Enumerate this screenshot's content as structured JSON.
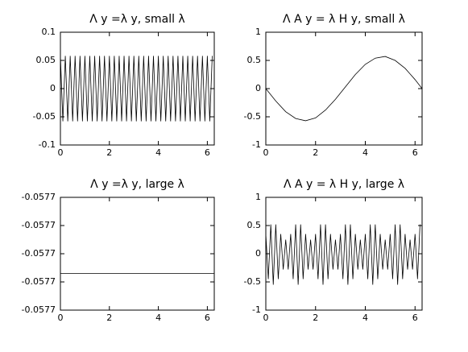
{
  "chart_data": [
    {
      "type": "line",
      "title": "Λ y =λ y, small λ",
      "color": "#000000",
      "x": [
        0,
        0.1,
        0.2,
        0.3,
        0.4,
        0.5,
        0.6,
        0.7,
        0.8,
        0.9,
        1,
        1.1,
        1.2,
        1.3,
        1.4,
        1.5,
        1.6,
        1.7,
        1.8,
        1.9,
        2,
        2.1,
        2.2,
        2.3,
        2.4,
        2.5,
        2.6,
        2.7,
        2.8,
        2.9,
        3,
        3.1,
        3.2,
        3.3,
        3.4,
        3.5,
        3.6,
        3.7,
        3.8,
        3.9,
        4,
        4.1,
        4.2,
        4.3,
        4.4,
        4.5,
        4.6,
        4.7,
        4.8,
        4.9,
        5,
        5.1,
        5.2,
        5.3,
        5.4,
        5.5,
        5.6,
        5.7,
        5.8,
        5.9,
        6,
        6.1,
        6.2
      ],
      "values": [
        0.058,
        -0.058,
        0.058,
        -0.058,
        0.058,
        -0.058,
        0.058,
        -0.058,
        0.058,
        -0.058,
        0.058,
        -0.058,
        0.058,
        -0.058,
        0.058,
        -0.058,
        0.058,
        -0.058,
        0.058,
        -0.058,
        0.058,
        -0.058,
        0.058,
        -0.058,
        0.058,
        -0.058,
        0.058,
        -0.058,
        0.058,
        -0.058,
        0.058,
        -0.058,
        0.058,
        -0.058,
        0.058,
        -0.058,
        0.058,
        -0.058,
        0.058,
        -0.058,
        0.058,
        -0.058,
        0.058,
        -0.058,
        0.058,
        -0.058,
        0.058,
        -0.058,
        0.058,
        -0.058,
        0.058,
        -0.058,
        0.058,
        -0.058,
        0.058,
        -0.058,
        0.058,
        -0.058,
        0.058,
        -0.058,
        0.058,
        -0.058,
        0.058
      ],
      "xlim": [
        0,
        6.2832
      ],
      "xticks": [
        0,
        2,
        4,
        6
      ],
      "ylim": [
        -0.1,
        0.1
      ],
      "yticks": [
        -0.1,
        -0.05,
        0,
        0.05,
        0.1
      ]
    },
    {
      "type": "line",
      "title": "Λ A y = λ H y, small λ",
      "color": "#000000",
      "x": [
        0,
        0.4,
        0.8,
        1.2,
        1.6,
        2.0,
        2.4,
        2.8,
        3.2,
        3.6,
        4.0,
        4.4,
        4.8,
        5.2,
        5.6,
        6.0,
        6.2832
      ],
      "values": [
        0,
        -0.22,
        -0.41,
        -0.53,
        -0.57,
        -0.52,
        -0.38,
        -0.19,
        0.03,
        0.25,
        0.43,
        0.54,
        0.57,
        0.5,
        0.36,
        0.16,
        0
      ],
      "xlim": [
        0,
        6.2832
      ],
      "xticks": [
        0,
        2,
        4,
        6
      ],
      "ylim": [
        -1,
        1
      ],
      "yticks": [
        -1,
        -0.5,
        0,
        0.5,
        1
      ]
    },
    {
      "type": "line",
      "title": "Λ y =λ y, large λ",
      "color": "#000000",
      "x": [
        0,
        6.2832
      ],
      "values": [
        -0.057727,
        -0.057727
      ],
      "xlim": [
        0,
        6.2832
      ],
      "xticks": [
        0,
        2,
        4,
        6
      ],
      "ylim": [
        -0.05774,
        -0.0577
      ],
      "yticks": [
        {
          "value": -0.05774,
          "label": "-0.0577"
        },
        {
          "value": -0.05773,
          "label": "-0.0577"
        },
        {
          "value": -0.05772,
          "label": "-0.0577"
        },
        {
          "value": -0.05771,
          "label": "-0.0577"
        },
        {
          "value": -0.0577,
          "label": "-0.0577"
        }
      ]
    },
    {
      "type": "line",
      "title": "Λ A y = λ H y, large λ",
      "color": "#000000",
      "x": [
        0,
        0.1,
        0.2,
        0.3,
        0.4,
        0.5,
        0.6,
        0.7,
        0.8,
        0.9,
        1,
        1.1,
        1.2,
        1.3,
        1.4,
        1.5,
        1.6,
        1.7,
        1.8,
        1.9,
        2,
        2.1,
        2.2,
        2.3,
        2.4,
        2.5,
        2.6,
        2.7,
        2.8,
        2.9,
        3,
        3.1,
        3.2,
        3.3,
        3.4,
        3.5,
        3.6,
        3.7,
        3.8,
        3.9,
        4,
        4.1,
        4.2,
        4.3,
        4.4,
        4.5,
        4.6,
        4.7,
        4.8,
        4.9,
        5,
        5.1,
        5.2,
        5.3,
        5.4,
        5.5,
        5.6,
        5.7,
        5.8,
        5.9,
        6,
        6.1,
        6.2
      ],
      "values": [
        0.35,
        -0.45,
        0.52,
        -0.55,
        0.52,
        -0.45,
        0.35,
        -0.28,
        0.25,
        -0.28,
        0.35,
        -0.45,
        0.52,
        -0.55,
        0.52,
        -0.45,
        0.35,
        -0.28,
        0.25,
        -0.28,
        0.35,
        -0.45,
        0.52,
        -0.55,
        0.52,
        -0.45,
        0.35,
        -0.28,
        0.25,
        -0.28,
        0.35,
        -0.45,
        0.52,
        -0.55,
        0.52,
        -0.45,
        0.35,
        -0.28,
        0.25,
        -0.28,
        0.35,
        -0.45,
        0.52,
        -0.55,
        0.52,
        -0.45,
        0.35,
        -0.28,
        0.25,
        -0.28,
        0.35,
        -0.45,
        0.52,
        -0.55,
        0.52,
        -0.45,
        0.35,
        -0.28,
        0.25,
        -0.28,
        0.35,
        -0.45,
        0.52
      ],
      "xlim": [
        0,
        6.2832
      ],
      "xticks": [
        0,
        2,
        4,
        6
      ],
      "ylim": [
        -1,
        1
      ],
      "yticks": [
        -1,
        -0.5,
        0,
        0.5,
        1
      ]
    }
  ]
}
